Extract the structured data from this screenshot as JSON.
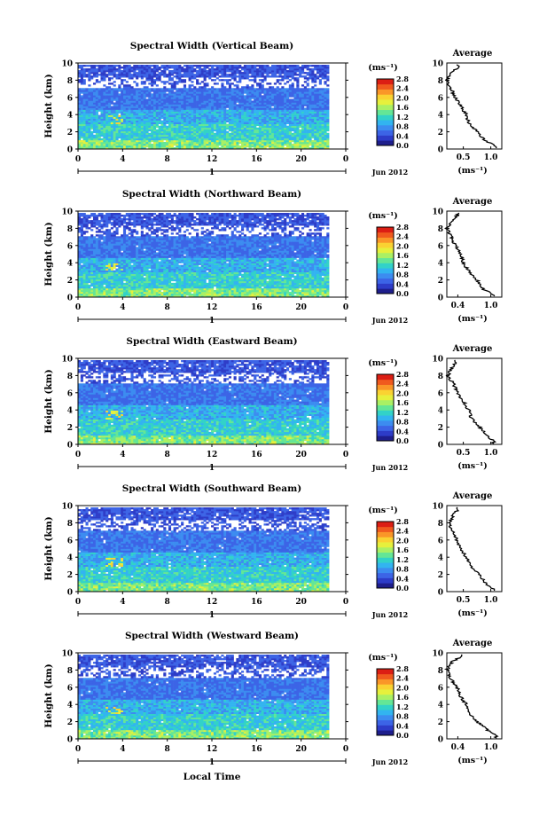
{
  "shared": {
    "height_label": "Height (km)",
    "date_label": "Jun 2012",
    "day_marker": "1",
    "unit_label": "(ms⁻¹)",
    "avg_unit_label": "(ms⁻¹)",
    "avg_title": "Average",
    "xlabel": "Local Time",
    "xticks": [
      "0",
      "4",
      "8",
      "12",
      "16",
      "20",
      "0"
    ],
    "yticks": [
      "0",
      "2",
      "4",
      "6",
      "8",
      "10"
    ],
    "colorbar_ticks": [
      "0.0",
      "0.4",
      "0.8",
      "1.2",
      "1.6",
      "2.0",
      "2.4",
      "2.8"
    ],
    "colors": {
      "colormap": [
        "#1e1e8c",
        "#2d3cc8",
        "#3c64e6",
        "#3c8cf0",
        "#32b4f0",
        "#32d2c8",
        "#64e696",
        "#aaf064",
        "#e6f03c",
        "#fad232",
        "#fa9628",
        "#f05a1e",
        "#dc1e14"
      ],
      "no_data": "#ffffff"
    }
  },
  "chart_data": [
    {
      "type": "heatmap",
      "title": "Spectral Width (Vertical Beam)",
      "x_range_hours": [
        0,
        24
      ],
      "y_range_km": [
        0,
        10
      ],
      "color_range": [
        0.0,
        2.8
      ],
      "average_profile": {
        "title": "Average",
        "xticks": [
          "0.5",
          "1.0"
        ],
        "xlim": [
          0.2,
          1.2
        ],
        "height_km": [
          0.3,
          1,
          2,
          3,
          4,
          5,
          6,
          7,
          8,
          9,
          9.5
        ],
        "value": [
          1.1,
          0.9,
          0.75,
          0.6,
          0.55,
          0.45,
          0.35,
          0.28,
          0.2,
          0.3,
          0.4
        ]
      }
    },
    {
      "type": "heatmap",
      "title": "Spectral Width (Northward Beam)",
      "x_range_hours": [
        0,
        24
      ],
      "y_range_km": [
        0,
        10
      ],
      "color_range": [
        0.0,
        2.8
      ],
      "average_profile": {
        "title": "Average",
        "xticks": [
          "0.4",
          "1.0"
        ],
        "xlim": [
          0.2,
          1.2
        ],
        "height_km": [
          0.3,
          1,
          2,
          3,
          4,
          5,
          6,
          7,
          8,
          9,
          9.5
        ],
        "value": [
          1.05,
          0.85,
          0.75,
          0.6,
          0.5,
          0.45,
          0.35,
          0.28,
          0.2,
          0.3,
          0.4
        ]
      }
    },
    {
      "type": "heatmap",
      "title": "Spectral Width (Eastward Beam)",
      "x_range_hours": [
        0,
        24
      ],
      "y_range_km": [
        0,
        10
      ],
      "color_range": [
        0.0,
        2.8
      ],
      "average_profile": {
        "title": "Average",
        "xticks": [
          "0.5",
          "1.0"
        ],
        "xlim": [
          0.2,
          1.2
        ],
        "height_km": [
          0.3,
          1,
          2,
          3,
          4,
          5,
          6,
          7,
          8,
          9,
          9.5
        ],
        "value": [
          1.05,
          0.95,
          0.8,
          0.65,
          0.6,
          0.5,
          0.4,
          0.32,
          0.22,
          0.3,
          0.35
        ]
      }
    },
    {
      "type": "heatmap",
      "title": "Spectral Width (Southward Beam)",
      "x_range_hours": [
        0,
        24
      ],
      "y_range_km": [
        0,
        10
      ],
      "color_range": [
        0.0,
        2.8
      ],
      "average_profile": {
        "title": "Average",
        "xticks": [
          "0.5",
          "1.0"
        ],
        "xlim": [
          0.2,
          1.2
        ],
        "height_km": [
          0.3,
          1,
          2,
          3,
          4,
          5,
          6,
          7,
          8,
          9,
          9.5
        ],
        "value": [
          1.05,
          0.9,
          0.8,
          0.62,
          0.55,
          0.45,
          0.38,
          0.3,
          0.25,
          0.32,
          0.4
        ]
      }
    },
    {
      "type": "heatmap",
      "title": "Spectral Width (Westward Beam)",
      "x_range_hours": [
        0,
        24
      ],
      "y_range_km": [
        0,
        10
      ],
      "color_range": [
        0.0,
        2.8
      ],
      "average_profile": {
        "title": "Average",
        "xticks": [
          "0.4",
          "1.0"
        ],
        "xlim": [
          0.2,
          1.2
        ],
        "height_km": [
          0.3,
          1,
          2,
          3,
          4,
          5,
          6,
          7,
          8,
          9,
          9.5
        ],
        "value": [
          1.1,
          0.95,
          0.75,
          0.6,
          0.55,
          0.45,
          0.38,
          0.28,
          0.2,
          0.3,
          0.45
        ]
      }
    }
  ]
}
